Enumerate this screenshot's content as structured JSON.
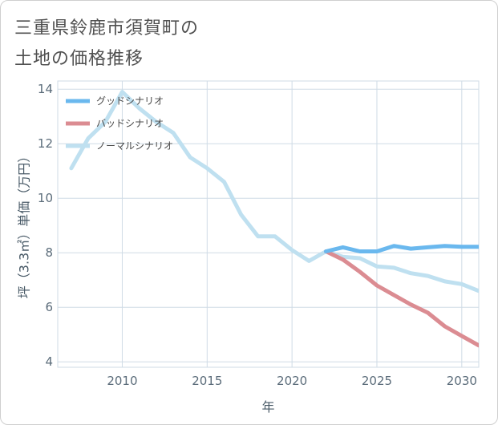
{
  "title_lines": [
    "三重県鈴鹿市須賀町の",
    "土地の価格推移"
  ],
  "colors": {
    "good": "#6ab8ee",
    "bad": "#db8c92",
    "normal": "#bfe0f0",
    "grid": "#cfdbe6",
    "axis": "#5b6c7a"
  },
  "chart_data": {
    "type": "line",
    "title": "三重県鈴鹿市須賀町の土地の価格推移",
    "xlabel": "年",
    "ylabel": "坪（3.3㎡）単価（万円）",
    "xlim": [
      2006.2,
      2031.0
    ],
    "ylim": [
      3.8,
      14.3
    ],
    "x_ticks": [
      2010,
      2015,
      2020,
      2025,
      2030
    ],
    "y_ticks": [
      4,
      6,
      8,
      10,
      12,
      14
    ],
    "grid": true,
    "legend_position": "top-left",
    "series": [
      {
        "name": "グッドシナリオ",
        "color": "#6ab8ee",
        "x": [
          2022,
          2023,
          2024,
          2025,
          2026,
          2027,
          2028,
          2029,
          2030,
          2031
        ],
        "y": [
          8.05,
          8.2,
          8.05,
          8.05,
          8.25,
          8.15,
          8.2,
          8.25,
          8.22,
          8.22
        ]
      },
      {
        "name": "バッドシナリオ",
        "color": "#db8c92",
        "x": [
          2022,
          2023,
          2024,
          2025,
          2026,
          2027,
          2028,
          2029,
          2030,
          2031
        ],
        "y": [
          8.05,
          7.75,
          7.3,
          6.8,
          6.45,
          6.1,
          5.8,
          5.3,
          4.95,
          4.6
        ]
      },
      {
        "name": "ノーマルシナリオ",
        "color": "#bfe0f0",
        "x": [
          2007,
          2008,
          2009,
          2010,
          2011,
          2012,
          2013,
          2014,
          2015,
          2016,
          2017,
          2018,
          2019,
          2020,
          2021,
          2022,
          2023,
          2024,
          2025,
          2026,
          2027,
          2028,
          2029,
          2030,
          2031
        ],
        "y": [
          11.1,
          12.2,
          12.8,
          13.9,
          13.3,
          12.8,
          12.4,
          11.5,
          11.1,
          10.6,
          9.4,
          8.6,
          8.6,
          8.1,
          7.7,
          8.05,
          7.85,
          7.8,
          7.5,
          7.45,
          7.25,
          7.15,
          6.95,
          6.85,
          6.6
        ]
      }
    ]
  }
}
